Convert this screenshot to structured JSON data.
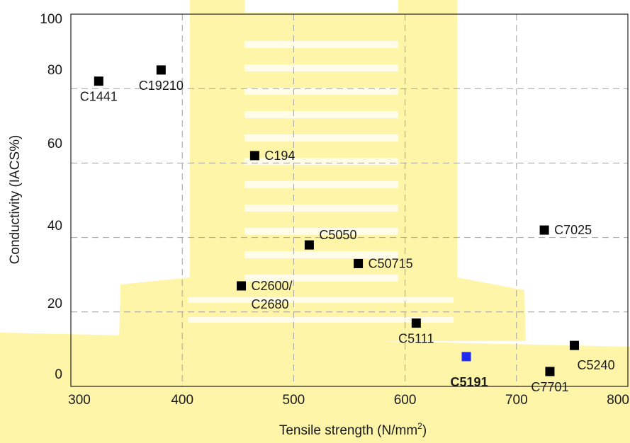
{
  "chart_data": {
    "type": "scatter",
    "title": "",
    "xlabel": "Tensile strength (N/mm",
    "xlabel_sup": "2",
    "xlabel_suffix": ")",
    "ylabel": "Conductivity (IACS%)",
    "xlim": [
      300,
      800
    ],
    "ylim": [
      0,
      100
    ],
    "x_ticks": [
      300,
      400,
      500,
      600,
      700,
      800
    ],
    "y_ticks": [
      0,
      20,
      40,
      60,
      80,
      100
    ],
    "grid": true,
    "colors": {
      "marker": "#000000",
      "highlight": "#1f2cf0",
      "watermark": "#fff5a8"
    },
    "points": [
      {
        "label": "C1441",
        "x": 325,
        "y": 82,
        "label_pos": "below",
        "highlight": false
      },
      {
        "label": "C19210",
        "x": 381,
        "y": 85,
        "label_pos": "below",
        "highlight": false
      },
      {
        "label": "C194",
        "x": 465,
        "y": 62,
        "label_pos": "right",
        "highlight": false
      },
      {
        "label": "C5050",
        "x": 514,
        "y": 38,
        "label_pos": "above-right",
        "highlight": false
      },
      {
        "label": "C50715",
        "x": 558,
        "y": 33,
        "label_pos": "right",
        "highlight": false
      },
      {
        "label": "C2600/",
        "label2": "C2680",
        "x": 453,
        "y": 27,
        "label_pos": "right",
        "highlight": false
      },
      {
        "label": "C7025",
        "x": 725,
        "y": 42,
        "label_pos": "right",
        "highlight": false
      },
      {
        "label": "C5111",
        "x": 610,
        "y": 17,
        "label_pos": "below",
        "highlight": false
      },
      {
        "label": "C5191",
        "x": 655,
        "y": 8,
        "label_pos": "below-left",
        "highlight": true
      },
      {
        "label": "C5240",
        "x": 752,
        "y": 11,
        "label_pos": "below-right",
        "highlight": false
      },
      {
        "label": "C7701",
        "x": 730,
        "y": 4,
        "label_pos": "below",
        "highlight": false
      }
    ]
  }
}
